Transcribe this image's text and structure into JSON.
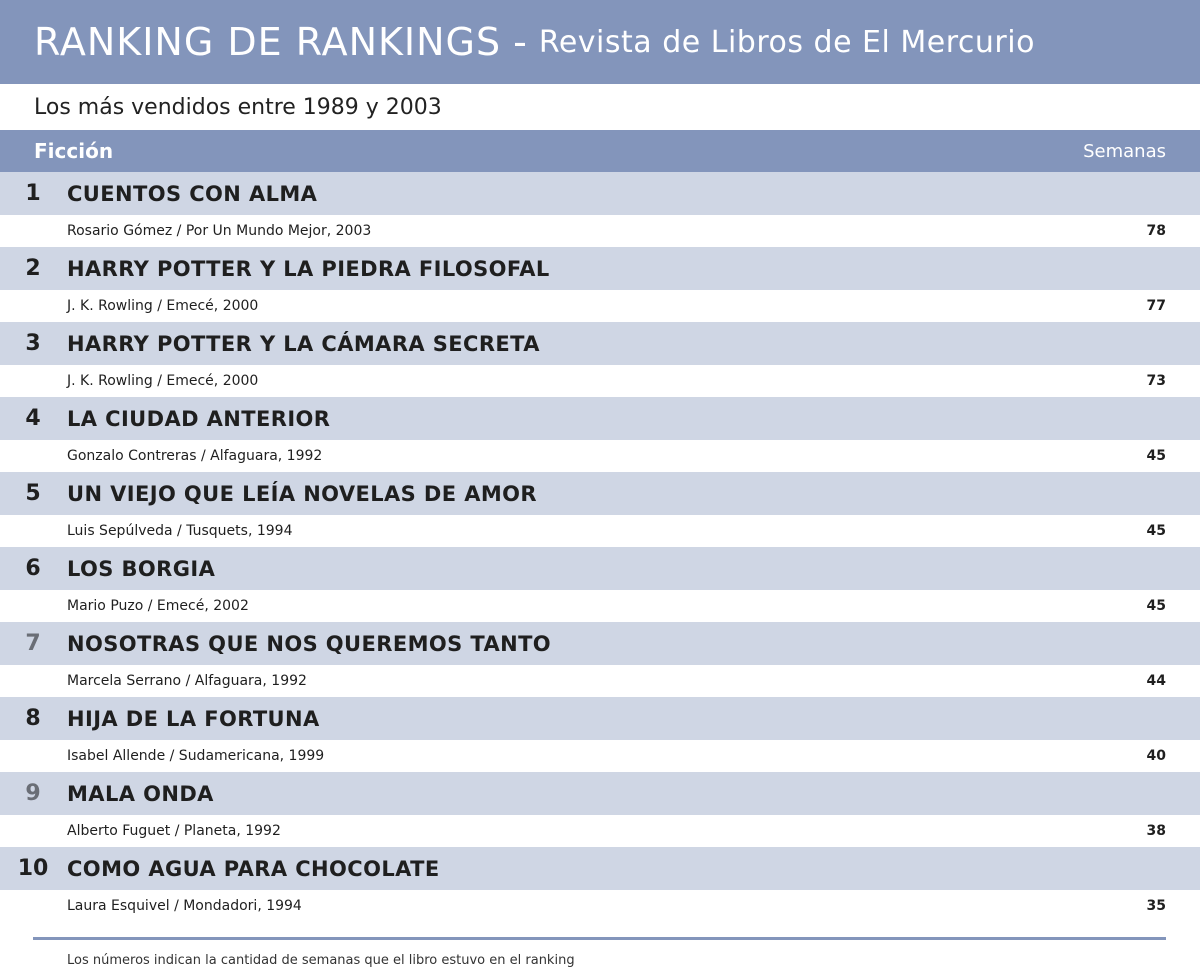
{
  "header": {
    "title": "RANKING DE RANKINGS",
    "separator": "-",
    "subtitle": "Revista de Libros de El Mercurio"
  },
  "subheader": "Los más vendidos entre 1989 y 2003",
  "section": {
    "title": "Ficción",
    "column_label": "Semanas"
  },
  "books": [
    {
      "rank": "1",
      "title": "CUENTOS CON ALMA",
      "meta": "Rosario Gómez / Por Un Mundo Mejor, 2003",
      "weeks": "78"
    },
    {
      "rank": "2",
      "title": "HARRY POTTER Y LA PIEDRA FILOSOFAL",
      "meta": "J. K. Rowling / Emecé, 2000",
      "weeks": "77"
    },
    {
      "rank": "3",
      "title": "HARRY POTTER Y LA CÁMARA SECRETA",
      "meta": "J. K. Rowling / Emecé, 2000",
      "weeks": "73"
    },
    {
      "rank": "4",
      "title": "LA CIUDAD ANTERIOR",
      "meta": "Gonzalo Contreras / Alfaguara, 1992",
      "weeks": "45"
    },
    {
      "rank": "5",
      "title": "UN VIEJO QUE LEÍA NOVELAS DE AMOR",
      "meta": "Luis Sepúlveda / Tusquets, 1994",
      "weeks": "45"
    },
    {
      "rank": "6",
      "title": "LOS BORGIA",
      "meta": "Mario Puzo / Emecé, 2002",
      "weeks": "45"
    },
    {
      "rank": "7",
      "title": "NOSOTRAS QUE NOS QUEREMOS TANTO",
      "meta": "Marcela Serrano / Alfaguara, 1992",
      "weeks": "44"
    },
    {
      "rank": "8",
      "title": "HIJA DE LA FORTUNA",
      "meta": "Isabel Allende / Sudamericana, 1999",
      "weeks": "40"
    },
    {
      "rank": "9",
      "title": "MALA ONDA",
      "meta": "Alberto Fuguet / Planeta, 1992",
      "weeks": "38"
    },
    {
      "rank": "10",
      "title": "COMO AGUA PARA CHOCOLATE",
      "meta": "Laura Esquivel / Mondadori, 1994",
      "weeks": "35"
    }
  ],
  "footnote": "Los números indican la cantidad de semanas que el libro estuvo en el ranking",
  "colors": {
    "header_bg": "#8395bb",
    "title_row_bg": "#cfd6e4",
    "muted_rank": "#6a6e76"
  }
}
